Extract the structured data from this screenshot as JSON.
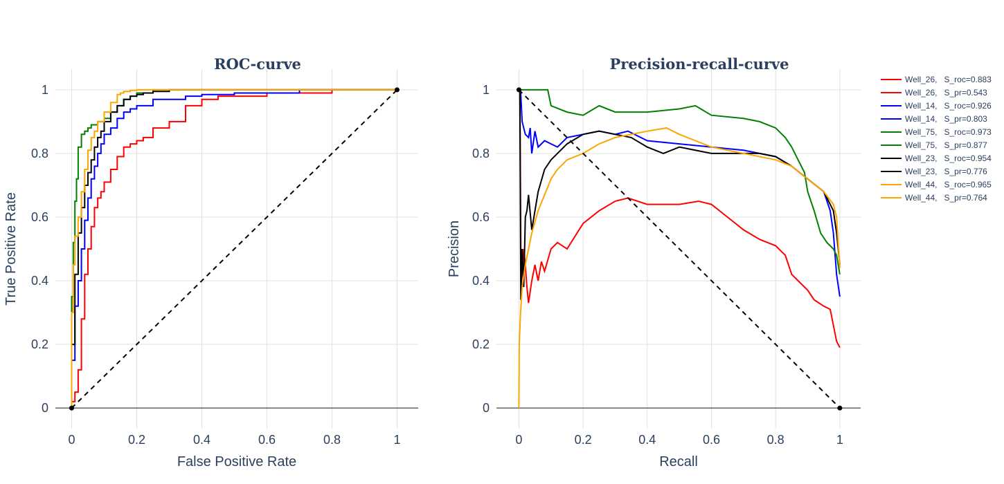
{
  "chart_data": [
    {
      "type": "line",
      "title": "ROC-curve",
      "xlabel": "False Positive Rate",
      "ylabel": "True Positive Rate",
      "xlim": [
        -0.05,
        1.065
      ],
      "ylim": [
        -0.065,
        1.065
      ],
      "xticks": [
        0,
        0.2,
        0.4,
        0.6,
        0.8,
        1
      ],
      "yticks": [
        0,
        0.2,
        0.4,
        0.6,
        0.8,
        1
      ],
      "xtick_labels": [
        "0",
        "0.2",
        "0.4",
        "0.6",
        "0.8",
        "1"
      ],
      "ytick_labels": [
        "0",
        "0.2",
        "0.4",
        "0.6",
        "0.8",
        "1"
      ],
      "grid": true,
      "series": [
        {
          "name": "Well_26,   S_roc=0.883",
          "color": "#ff0000",
          "x": [
            0,
            0.01,
            0.02,
            0.03,
            0.04,
            0.05,
            0.06,
            0.07,
            0.08,
            0.09,
            0.1,
            0.12,
            0.14,
            0.16,
            0.18,
            0.2,
            0.22,
            0.25,
            0.3,
            0.35,
            0.4,
            0.45,
            0.5,
            0.6,
            0.7,
            0.8,
            0.87,
            0.9,
            1
          ],
          "y": [
            0,
            0.02,
            0.05,
            0.12,
            0.28,
            0.42,
            0.5,
            0.57,
            0.63,
            0.66,
            0.68,
            0.71,
            0.75,
            0.79,
            0.82,
            0.83,
            0.84,
            0.85,
            0.88,
            0.9,
            0.95,
            0.97,
            0.98,
            0.98,
            0.99,
            0.99,
            1,
            1,
            1
          ]
        },
        {
          "name": "Well_14,   S_roc=0.926",
          "color": "#0000ff",
          "x": [
            0,
            0.01,
            0.02,
            0.03,
            0.04,
            0.05,
            0.06,
            0.07,
            0.08,
            0.09,
            0.1,
            0.12,
            0.14,
            0.16,
            0.18,
            0.2,
            0.25,
            0.3,
            0.35,
            0.4,
            0.5,
            0.6,
            0.7,
            0.8,
            0.9,
            1
          ],
          "y": [
            0,
            0.15,
            0.32,
            0.4,
            0.5,
            0.59,
            0.66,
            0.72,
            0.76,
            0.8,
            0.83,
            0.86,
            0.88,
            0.91,
            0.93,
            0.94,
            0.95,
            0.97,
            0.97,
            0.98,
            0.985,
            0.99,
            0.99,
            1,
            1,
            1
          ]
        },
        {
          "name": "Well_75,   S_roc=0.973",
          "color": "#008000",
          "x": [
            0,
            0.005,
            0.01,
            0.015,
            0.02,
            0.03,
            0.04,
            0.05,
            0.06,
            0.08,
            0.1,
            0.12,
            0.14,
            0.16,
            0.18,
            0.2,
            0.25,
            0.3,
            0.4,
            0.5,
            1
          ],
          "y": [
            0,
            0.35,
            0.52,
            0.65,
            0.72,
            0.82,
            0.86,
            0.87,
            0.88,
            0.89,
            0.9,
            0.91,
            0.93,
            0.95,
            0.97,
            0.98,
            0.99,
            1,
            1,
            1,
            1
          ]
        },
        {
          "name": "Well_23,   S_roc=0.954",
          "color": "#000000",
          "x": [
            0,
            0.01,
            0.02,
            0.03,
            0.04,
            0.05,
            0.06,
            0.07,
            0.08,
            0.09,
            0.1,
            0.12,
            0.14,
            0.16,
            0.18,
            0.2,
            0.22,
            0.25,
            0.3,
            0.37,
            0.4,
            1
          ],
          "y": [
            0,
            0.2,
            0.42,
            0.55,
            0.63,
            0.7,
            0.74,
            0.78,
            0.82,
            0.85,
            0.87,
            0.9,
            0.93,
            0.95,
            0.97,
            0.98,
            0.985,
            0.99,
            0.995,
            1,
            1,
            1
          ]
        },
        {
          "name": "Well_44,   S_roc=0.965",
          "color": "#ffa500",
          "x": [
            0,
            0.005,
            0.01,
            0.02,
            0.03,
            0.04,
            0.05,
            0.06,
            0.07,
            0.08,
            0.1,
            0.12,
            0.14,
            0.15,
            0.16,
            0.18,
            0.2,
            0.25,
            0.3,
            1
          ],
          "y": [
            0,
            0.3,
            0.45,
            0.54,
            0.6,
            0.68,
            0.75,
            0.81,
            0.85,
            0.87,
            0.9,
            0.93,
            0.96,
            0.985,
            0.99,
            0.995,
            0.998,
            1,
            1,
            1
          ]
        },
        {
          "name": "",
          "color": "#000000",
          "dash": true,
          "x": [
            0,
            1
          ],
          "y": [
            0,
            1
          ]
        }
      ]
    },
    {
      "type": "line",
      "title": "Precision-recall-curve",
      "xlabel": "Recall",
      "ylabel": "Precision",
      "xlim": [
        -0.07,
        1.065
      ],
      "ylim": [
        -0.065,
        1.065
      ],
      "xticks": [
        0,
        0.2,
        0.4,
        0.6,
        0.8,
        1
      ],
      "yticks": [
        0,
        0.2,
        0.4,
        0.6,
        0.8,
        1
      ],
      "xtick_labels": [
        "0",
        "0.2",
        "0.4",
        "0.6",
        "0.8",
        "1"
      ],
      "ytick_labels": [
        "0",
        "0.2",
        "0.4",
        "0.6",
        "0.8",
        "1"
      ],
      "grid": true,
      "series": [
        {
          "name": "Well_26,   S_pr=0.543",
          "color": "#ff0000",
          "x": [
            0,
            0.003,
            0.006,
            0.008,
            0.01,
            0.015,
            0.02,
            0.025,
            0.03,
            0.04,
            0.05,
            0.06,
            0.07,
            0.08,
            0.1,
            0.12,
            0.15,
            0.2,
            0.25,
            0.3,
            0.34,
            0.4,
            0.5,
            0.56,
            0.6,
            0.65,
            0.7,
            0.75,
            0.8,
            0.83,
            0.85,
            0.87,
            0.9,
            0.92,
            0.95,
            0.97,
            0.99,
            1
          ],
          "y": [
            1,
            1,
            0.5,
            0.4,
            0.42,
            0.5,
            0.45,
            0.38,
            0.33,
            0.4,
            0.45,
            0.4,
            0.46,
            0.43,
            0.5,
            0.52,
            0.5,
            0.58,
            0.62,
            0.65,
            0.66,
            0.64,
            0.64,
            0.65,
            0.64,
            0.6,
            0.56,
            0.53,
            0.51,
            0.48,
            0.42,
            0.4,
            0.37,
            0.34,
            0.32,
            0.31,
            0.21,
            0.19
          ]
        },
        {
          "name": "Well_14,   S_pr=0.803",
          "color": "#0000ff",
          "x": [
            0,
            0.005,
            0.01,
            0.02,
            0.03,
            0.035,
            0.04,
            0.05,
            0.06,
            0.08,
            0.1,
            0.12,
            0.15,
            0.2,
            0.25,
            0.3,
            0.34,
            0.4,
            0.5,
            0.6,
            0.7,
            0.8,
            0.85,
            0.9,
            0.95,
            0.97,
            0.98,
            0.99,
            1
          ],
          "y": [
            1,
            1,
            0.9,
            0.86,
            0.85,
            0.88,
            0.8,
            0.87,
            0.82,
            0.84,
            0.83,
            0.82,
            0.85,
            0.86,
            0.87,
            0.86,
            0.87,
            0.84,
            0.83,
            0.82,
            0.81,
            0.79,
            0.76,
            0.72,
            0.68,
            0.62,
            0.55,
            0.42,
            0.35
          ]
        },
        {
          "name": "Well_75,   S_pr=0.877",
          "color": "#008000",
          "x": [
            0,
            0.02,
            0.05,
            0.09,
            0.1,
            0.15,
            0.2,
            0.25,
            0.3,
            0.4,
            0.5,
            0.55,
            0.6,
            0.7,
            0.75,
            0.8,
            0.83,
            0.85,
            0.87,
            0.89,
            0.9,
            0.92,
            0.94,
            0.96,
            0.98,
            0.99,
            1
          ],
          "y": [
            1,
            1,
            1,
            1,
            0.95,
            0.93,
            0.92,
            0.95,
            0.93,
            0.93,
            0.94,
            0.95,
            0.92,
            0.91,
            0.9,
            0.88,
            0.85,
            0.82,
            0.78,
            0.74,
            0.68,
            0.62,
            0.55,
            0.52,
            0.5,
            0.48,
            0.42
          ]
        },
        {
          "name": "Well_23,   S_pr=0.776",
          "color": "#000000",
          "x": [
            0,
            0.003,
            0.006,
            0.01,
            0.015,
            0.02,
            0.025,
            0.03,
            0.04,
            0.06,
            0.08,
            0.1,
            0.15,
            0.2,
            0.25,
            0.3,
            0.35,
            0.4,
            0.45,
            0.5,
            0.6,
            0.7,
            0.75,
            0.8,
            0.85,
            0.9,
            0.95,
            0.98,
            0.99,
            1
          ],
          "y": [
            1,
            1,
            0.34,
            0.5,
            0.38,
            0.6,
            0.62,
            0.67,
            0.56,
            0.68,
            0.75,
            0.78,
            0.83,
            0.86,
            0.87,
            0.86,
            0.85,
            0.82,
            0.8,
            0.82,
            0.8,
            0.8,
            0.8,
            0.79,
            0.76,
            0.72,
            0.68,
            0.62,
            0.55,
            0.45
          ]
        },
        {
          "name": "Well_44,   S_pr=0.764",
          "color": "#ffa500",
          "x": [
            0,
            0.001,
            0.005,
            0.01,
            0.02,
            0.04,
            0.06,
            0.08,
            0.1,
            0.12,
            0.15,
            0.2,
            0.25,
            0.3,
            0.4,
            0.46,
            0.5,
            0.6,
            0.7,
            0.8,
            0.85,
            0.9,
            0.95,
            0.98,
            0.99,
            1
          ],
          "y": [
            0,
            0.2,
            0.3,
            0.38,
            0.45,
            0.55,
            0.62,
            0.67,
            0.72,
            0.75,
            0.78,
            0.8,
            0.83,
            0.85,
            0.87,
            0.88,
            0.86,
            0.82,
            0.8,
            0.78,
            0.76,
            0.72,
            0.68,
            0.64,
            0.6,
            0.44
          ]
        },
        {
          "name": "",
          "color": "#000000",
          "dash": true,
          "x": [
            0,
            1
          ],
          "y": [
            1,
            0
          ]
        }
      ]
    }
  ],
  "legend": {
    "placement": "right",
    "entries": [
      {
        "label": "Well_26,   S_roc=0.883",
        "color": "#ff0000"
      },
      {
        "label": "Well_26,   S_pr=0.543",
        "color": "#ff0000"
      },
      {
        "label": "Well_14,   S_roc=0.926",
        "color": "#0000ff"
      },
      {
        "label": "Well_14,   S_pr=0.803",
        "color": "#0000ff"
      },
      {
        "label": "Well_75,   S_roc=0.973",
        "color": "#008000"
      },
      {
        "label": "Well_75,   S_pr=0.877",
        "color": "#008000"
      },
      {
        "label": "Well_23,   S_roc=0.954",
        "color": "#000000"
      },
      {
        "label": "Well_23,   S_pr=0.776",
        "color": "#000000"
      },
      {
        "label": "Well_44,   S_roc=0.965",
        "color": "#ffa500"
      },
      {
        "label": "Well_44,   S_pr=0.764",
        "color": "#ffa500"
      }
    ]
  }
}
